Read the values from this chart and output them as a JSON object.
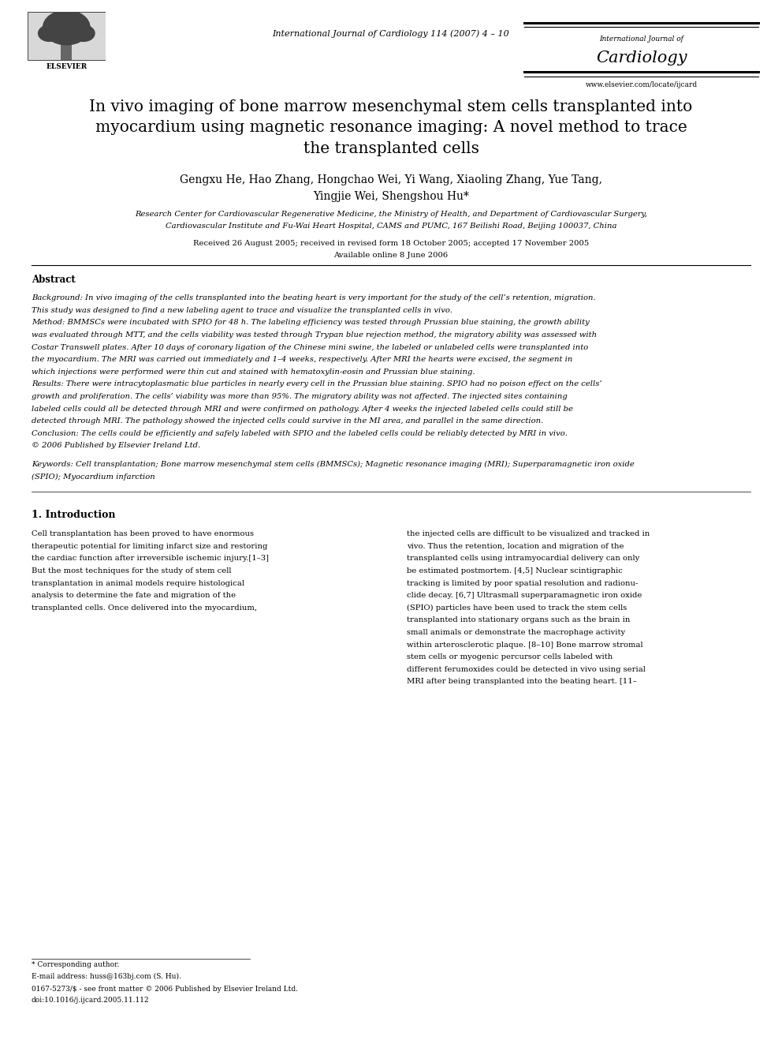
{
  "title": "In vivo imaging of bone marrow mesenchymal stem cells transplanted into\nmyocardium using magnetic resonance imaging: A novel method to trace\nthe transplanted cells",
  "authors": "Gengxu He, Hao Zhang, Hongchao Wei, Yi Wang, Xiaoling Zhang, Yue Tang,\nYingjie Wei, Shengshou Hu*",
  "affiliation1": "Research Center for Cardiovascular Regenerative Medicine, the Ministry of Health, and Department of Cardiovascular Surgery,",
  "affiliation2": "Cardiovascular Institute and Fu-Wai Heart Hospital, CAMS and PUMC, 167 Beilishi Road, Beijing 100037, China",
  "received": "Received 26 August 2005; received in revised form 18 October 2005; accepted 17 November 2005",
  "available": "Available online 8 June 2006",
  "journal_header": "International Journal of Cardiology 114 (2007) 4 – 10",
  "journal_name_small": "International Journal of",
  "journal_name_large": "Cardiology",
  "journal_url": "www.elsevier.com/locate/ijcard",
  "abstract_label": "Abstract",
  "section1_title": "1. Introduction",
  "footnote_star": "* Corresponding author.",
  "footnote_email": "E-mail address: huss@163bj.com (S. Hu).",
  "footnote_issn": "0167-5273/$ - see front matter © 2006 Published by Elsevier Ireland Ltd.",
  "footnote_doi": "doi:10.1016/j.ijcard.2005.11.112",
  "bg_color": "#ffffff",
  "text_color": "#000000",
  "bg_lines_1": "Background: In vivo imaging of the cells transplanted into the beating heart is very important for the study of the cell’s retention, migration.",
  "bg_lines_2": "This study was designed to find a new labeling agent to trace and visualize the transplanted cells in vivo.",
  "method_lines": [
    "Method: BMMSCs were incubated with SPIO for 48 h. The labeling efficiency was tested through Prussian blue staining, the growth ability",
    "was evaluated through MTT, and the cells viability was tested through Trypan blue rejection method, the migratory ability was assessed with",
    "Costar Transwell plates. After 10 days of coronary ligation of the Chinese mini swine, the labeled or unlabeled cells were transplanted into",
    "the myocardium. The MRI was carried out immediately and 1–4 weeks, respectively. After MRI the hearts were excised, the segment in",
    "which injections were performed were thin cut and stained with hematoxylin-eosin and Prussian blue staining."
  ],
  "results_lines": [
    "Results: There were intracytoplasmatic blue particles in nearly every cell in the Prussian blue staining. SPIO had no poison effect on the cells’",
    "growth and proliferation. The cells’ viability was more than 95%. The migratory ability was not affected. The injected sites containing",
    "labeled cells could all be detected through MRI and were confirmed on pathology. After 4 weeks the injected labeled cells could still be",
    "detected through MRI. The pathology showed the injected cells could survive in the MI area, and parallel in the same direction."
  ],
  "conclusion_lines": [
    "Conclusion: The cells could be efficiently and safely labeled with SPIO and the labeled cells could be reliably detected by MRI in vivo.",
    "© 2006 Published by Elsevier Ireland Ltd."
  ],
  "keywords_lines": [
    "Keywords: Cell transplantation; Bone marrow mesenchymal stem cells (BMMSCs); Magnetic resonance imaging (MRI); Superparamagnetic iron oxide",
    "(SPIO); Myocardium infarction"
  ],
  "col1_lines": [
    "Cell transplantation has been proved to have enormous",
    "therapeutic potential for limiting infarct size and restoring",
    "the cardiac function after irreversible ischemic injury.[1–3]",
    "But the most techniques for the study of stem cell",
    "transplantation in animal models require histological",
    "analysis to determine the fate and migration of the",
    "transplanted cells. Once delivered into the myocardium,"
  ],
  "col2_lines": [
    "the injected cells are difficult to be visualized and tracked in",
    "vivo. Thus the retention, location and migration of the",
    "transplanted cells using intramyocardial delivery can only",
    "be estimated postmortem. [4,5] Nuclear scintigraphic",
    "tracking is limited by poor spatial resolution and radionu-",
    "clide decay. [6,7] Ultrasmall superparamagnetic iron oxide",
    "(SPIO) particles have been used to track the stem cells",
    "transplanted into stationary organs such as the brain in",
    "small animals or demonstrate the macrophage activity",
    "within arterosclerotic plaque. [8–10] Bone marrow stromal",
    "stem cells or myogenic percursor cells labeled with",
    "different ferumoxides could be detected in vivo using serial",
    "MRI after being transplanted into the beating heart. [11–"
  ]
}
